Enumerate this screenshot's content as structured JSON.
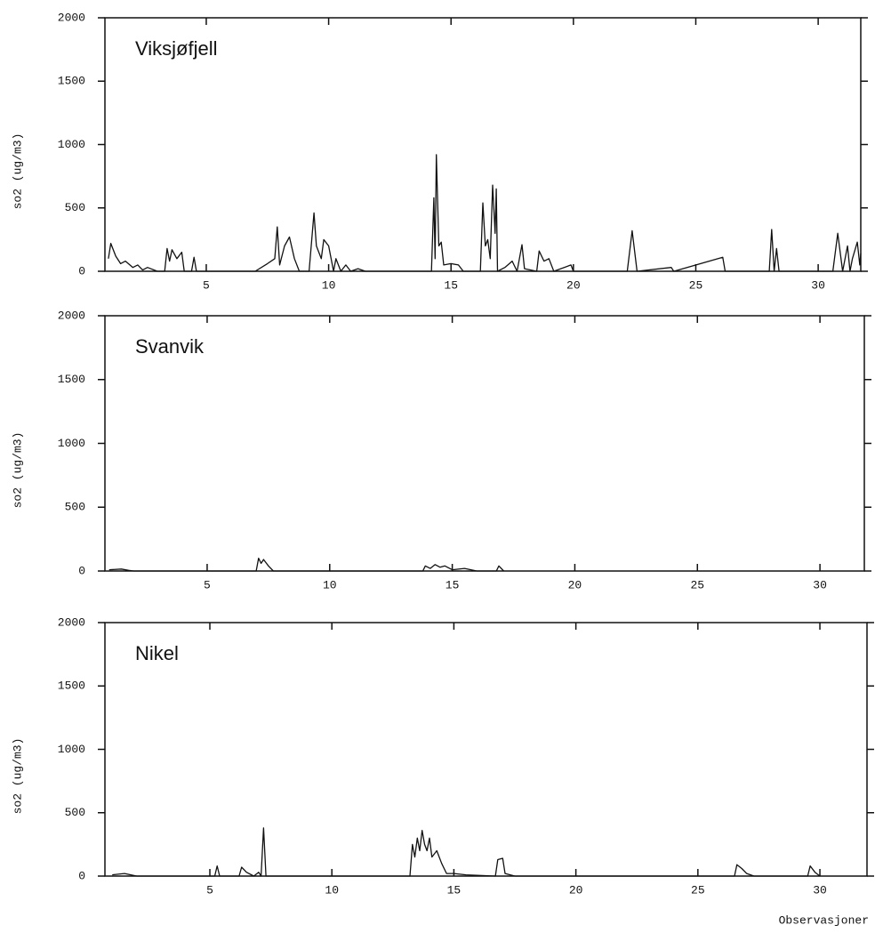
{
  "chart_data": [
    {
      "type": "line",
      "title": "Viksjøfjell",
      "y_label": "so2 (ug/m3)",
      "xlim": [
        0.86,
        31.74
      ],
      "xticks": [
        5,
        10,
        15,
        20,
        25,
        30
      ],
      "ylim": [
        0,
        2000
      ],
      "yticks": [
        0,
        500,
        1000,
        1500,
        2000
      ],
      "series": [
        {
          "color": "#111111",
          "x": [
            1.0,
            1.1,
            1.3,
            1.5,
            1.7,
            2.0,
            2.2,
            2.4,
            2.6,
            3.0,
            3.3,
            3.4,
            3.5,
            3.6,
            3.8,
            4.0,
            4.1,
            4.4,
            4.5,
            4.6,
            7.0,
            7.5,
            7.8,
            7.9,
            8.0,
            8.2,
            8.4,
            8.6,
            8.8,
            9.2,
            9.4,
            9.5,
            9.7,
            9.8,
            10.0,
            10.2,
            10.3,
            10.5,
            10.7,
            10.9,
            11.2,
            11.5,
            14.2,
            14.3,
            14.35,
            14.4,
            14.5,
            14.6,
            14.7,
            15.0,
            15.3,
            15.5,
            16.2,
            16.3,
            16.4,
            16.5,
            16.6,
            16.7,
            16.8,
            16.85,
            16.9,
            17.2,
            17.5,
            17.7,
            17.9,
            18.0,
            18.5,
            18.6,
            18.8,
            19.0,
            19.2,
            19.9,
            20.0,
            22.2,
            22.4,
            22.6,
            24.0,
            24.1,
            26.1,
            26.2,
            28.0,
            28.1,
            28.2,
            28.3,
            28.4,
            30.6,
            30.8,
            31.0,
            31.2,
            31.3,
            31.4,
            31.6,
            31.7,
            31.74
          ],
          "values": [
            100,
            220,
            120,
            60,
            80,
            30,
            50,
            10,
            30,
            0,
            0,
            180,
            80,
            170,
            100,
            150,
            0,
            0,
            110,
            0,
            0,
            60,
            100,
            350,
            50,
            200,
            270,
            100,
            0,
            0,
            460,
            200,
            100,
            250,
            200,
            0,
            100,
            0,
            50,
            0,
            20,
            0,
            0,
            580,
            100,
            920,
            200,
            230,
            50,
            60,
            50,
            0,
            0,
            540,
            200,
            250,
            100,
            680,
            300,
            650,
            0,
            30,
            80,
            0,
            210,
            20,
            0,
            160,
            80,
            100,
            0,
            50,
            0,
            0,
            320,
            0,
            30,
            0,
            110,
            0,
            0,
            330,
            0,
            180,
            0,
            0,
            300,
            0,
            200,
            0,
            100,
            230,
            50,
            140
          ]
        }
      ]
    },
    {
      "type": "line",
      "title": "Svanvik",
      "y_label": "so2 (ug/m3)",
      "xlim": [
        0.83,
        31.81
      ],
      "xticks": [
        5,
        10,
        15,
        20,
        25,
        30
      ],
      "ylim": [
        0,
        2000
      ],
      "yticks": [
        0,
        500,
        1000,
        1500,
        2000
      ],
      "series": [
        {
          "color": "#111111",
          "x": [
            1.0,
            1.5,
            1.8,
            2.0,
            7.0,
            7.1,
            7.2,
            7.3,
            7.5,
            7.7,
            13.8,
            13.9,
            14.1,
            14.3,
            14.5,
            14.7,
            15.0,
            15.5,
            16.0,
            16.8,
            16.9,
            17.1
          ],
          "values": [
            10,
            15,
            5,
            0,
            0,
            100,
            60,
            90,
            40,
            0,
            0,
            40,
            20,
            50,
            30,
            40,
            10,
            20,
            0,
            0,
            40,
            0
          ]
        }
      ]
    },
    {
      "type": "line",
      "title": "Nikel",
      "y_label": "so2 (ug/m3)",
      "x_label": "Observasjoner",
      "xlim": [
        0.7,
        31.93
      ],
      "xticks": [
        5,
        10,
        15,
        20,
        25,
        30
      ],
      "ylim": [
        0,
        2000
      ],
      "yticks": [
        0,
        500,
        1000,
        1500,
        2000
      ],
      "series": [
        {
          "color": "#111111",
          "x": [
            1.0,
            1.5,
            2.0,
            5.2,
            5.3,
            5.4,
            6.2,
            6.3,
            6.5,
            6.8,
            7.0,
            7.1,
            7.2,
            7.3,
            13.2,
            13.3,
            13.4,
            13.5,
            13.6,
            13.7,
            13.8,
            13.9,
            14.0,
            14.1,
            14.3,
            14.5,
            14.7,
            15.0,
            15.5,
            16.7,
            16.8,
            17.0,
            17.1,
            17.5,
            26.5,
            26.6,
            26.8,
            27.0,
            27.3,
            29.5,
            29.6,
            29.8,
            30.0
          ],
          "values": [
            10,
            20,
            0,
            0,
            80,
            0,
            0,
            70,
            30,
            0,
            30,
            0,
            380,
            0,
            0,
            250,
            150,
            300,
            200,
            360,
            250,
            200,
            300,
            150,
            200,
            100,
            20,
            20,
            10,
            0,
            130,
            140,
            20,
            0,
            0,
            90,
            60,
            20,
            0,
            0,
            80,
            30,
            0
          ]
        }
      ]
    }
  ]
}
